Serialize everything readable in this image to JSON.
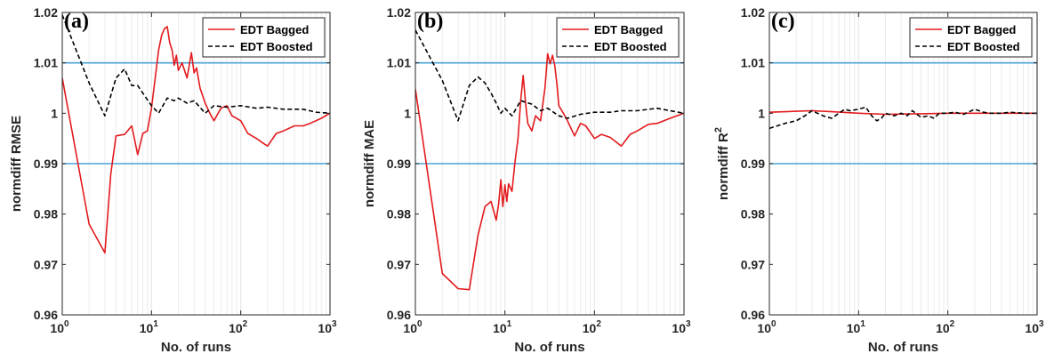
{
  "chart_data": [
    {
      "type": "line",
      "panel_label": "(a)",
      "xlabel": "No. of runs",
      "ylabel": "normdiff RMSE",
      "ylabel_sup": "",
      "xscale": "log",
      "xlim": [
        1,
        1000
      ],
      "ylim": [
        0.96,
        1.02
      ],
      "x_ticks": [
        1,
        10,
        100,
        1000
      ],
      "x_tick_labels": [
        {
          "base": "10",
          "exp": "0"
        },
        {
          "base": "10",
          "exp": "1"
        },
        {
          "base": "10",
          "exp": "2"
        },
        {
          "base": "10",
          "exp": "3"
        }
      ],
      "y_ticks": [
        0.96,
        0.97,
        0.98,
        0.99,
        1,
        1.01,
        1.02
      ],
      "y_tick_labels": [
        "0.96",
        "0.97",
        "0.98",
        "0.99",
        "1",
        "1.01",
        "1.02"
      ],
      "reference_lines": [
        0.99,
        1.01
      ],
      "grid": "x-minor",
      "legend_position": "top-right",
      "series": [
        {
          "name": "EDT Bagged",
          "color": "#e31a1c",
          "dash": "solid",
          "x": [
            1,
            2,
            3,
            3.5,
            4,
            5,
            6,
            7,
            8,
            9,
            10,
            11,
            12,
            13,
            14,
            15,
            16,
            17,
            18,
            19,
            20,
            22,
            25,
            28,
            30,
            32,
            35,
            40,
            45,
            50,
            60,
            70,
            80,
            100,
            120,
            150,
            180,
            200,
            250,
            300,
            400,
            500,
            600,
            800,
            1000
          ],
          "y": [
            1.007,
            0.978,
            0.9723,
            0.988,
            0.9955,
            0.9958,
            0.9975,
            0.9918,
            0.996,
            0.9965,
            1.001,
            1.007,
            1.0125,
            1.0155,
            1.0168,
            1.0172,
            1.014,
            1.0125,
            1.0095,
            1.0115,
            1.0085,
            1.01,
            1.007,
            1.012,
            1.008,
            1.009,
            1.005,
            1.002,
            1.0,
            0.9985,
            1.001,
            1.0015,
            0.9995,
            0.9985,
            0.996,
            0.995,
            0.994,
            0.9935,
            0.996,
            0.9965,
            0.9975,
            0.9975,
            0.998,
            0.999,
            1.0
          ]
        },
        {
          "name": "EDT Boosted",
          "color": "#000000",
          "dash": "dashed",
          "x": [
            1,
            2,
            3,
            4,
            5,
            6,
            7,
            8,
            10,
            12,
            15,
            18,
            20,
            25,
            30,
            40,
            50,
            70,
            100,
            150,
            200,
            300,
            500,
            700,
            1000
          ],
          "y": [
            1.0195,
            1.006,
            0.9995,
            1.007,
            1.0088,
            1.0055,
            1.0055,
            1.004,
            1.0015,
            1.0,
            1.003,
            1.0025,
            1.003,
            1.002,
            1.0025,
            1.0,
            1.0015,
            1.0012,
            1.0015,
            1.001,
            1.0012,
            1.0008,
            1.0008,
            1.0002,
            1.0
          ]
        }
      ]
    },
    {
      "type": "line",
      "panel_label": "(b)",
      "xlabel": "No. of runs",
      "ylabel": "normdiff MAE",
      "ylabel_sup": "",
      "xscale": "log",
      "xlim": [
        1,
        1000
      ],
      "ylim": [
        0.96,
        1.02
      ],
      "x_ticks": [
        1,
        10,
        100,
        1000
      ],
      "x_tick_labels": [
        {
          "base": "10",
          "exp": "0"
        },
        {
          "base": "10",
          "exp": "1"
        },
        {
          "base": "10",
          "exp": "2"
        },
        {
          "base": "10",
          "exp": "3"
        }
      ],
      "y_ticks": [
        0.96,
        0.97,
        0.98,
        0.99,
        1,
        1.01,
        1.02
      ],
      "y_tick_labels": [
        "0.96",
        "0.97",
        "0.98",
        "0.99",
        "1",
        "1.01",
        "1.02"
      ],
      "reference_lines": [
        0.99,
        1.01
      ],
      "grid": "x-minor",
      "legend_position": "top-right",
      "series": [
        {
          "name": "EDT Bagged",
          "color": "#e31a1c",
          "dash": "solid",
          "x": [
            1,
            2,
            3,
            4,
            5,
            6,
            7,
            8,
            8.5,
            9,
            9.5,
            10,
            10.5,
            11,
            12,
            13,
            14,
            15,
            16,
            17,
            18,
            20,
            22,
            25,
            28,
            30,
            32,
            34,
            36,
            38,
            40,
            45,
            50,
            60,
            70,
            80,
            100,
            120,
            150,
            200,
            250,
            300,
            400,
            500,
            700,
            1000
          ],
          "y": [
            1.0048,
            0.9682,
            0.9652,
            0.965,
            0.9758,
            0.9815,
            0.9825,
            0.9788,
            0.982,
            0.9868,
            0.9815,
            0.9858,
            0.9825,
            0.986,
            0.9845,
            0.9905,
            0.995,
            1.0025,
            1.0075,
            1.002,
            0.998,
            0.9965,
            0.9995,
            0.9985,
            1.005,
            1.0118,
            1.0098,
            1.0115,
            1.0095,
            1.006,
            1.0015,
            1.0,
            0.9985,
            0.9955,
            0.998,
            0.9975,
            0.995,
            0.9958,
            0.9952,
            0.9935,
            0.9958,
            0.9965,
            0.9978,
            0.998,
            0.999,
            1.0
          ]
        },
        {
          "name": "EDT Boosted",
          "color": "#000000",
          "dash": "dashed",
          "x": [
            1,
            2,
            3,
            4,
            5,
            6,
            7,
            8,
            9,
            10,
            12,
            15,
            20,
            25,
            30,
            40,
            50,
            70,
            100,
            150,
            200,
            300,
            500,
            700,
            1000
          ],
          "y": [
            1.0165,
            1.0065,
            0.9985,
            1.0055,
            1.0072,
            1.006,
            1.004,
            1.002,
            1.0,
            1.001,
            0.9995,
            1.0025,
            1.0018,
            1.0005,
            1.001,
            0.9995,
            0.999,
            0.9998,
            1.0002,
            1.0002,
            1.0005,
            1.0005,
            1.001,
            1.0005,
            1.0
          ]
        }
      ]
    },
    {
      "type": "line",
      "panel_label": "(c)",
      "xlabel": "No. of runs",
      "ylabel": "normdiff R",
      "ylabel_sup": "2",
      "xscale": "log",
      "xlim": [
        1,
        1000
      ],
      "ylim": [
        0.96,
        1.02
      ],
      "x_ticks": [
        1,
        10,
        100,
        1000
      ],
      "x_tick_labels": [
        {
          "base": "10",
          "exp": "0"
        },
        {
          "base": "10",
          "exp": "1"
        },
        {
          "base": "10",
          "exp": "2"
        },
        {
          "base": "10",
          "exp": "3"
        }
      ],
      "y_ticks": [
        0.96,
        0.97,
        0.98,
        0.99,
        1,
        1.01,
        1.02
      ],
      "y_tick_labels": [
        "0.96",
        "0.97",
        "0.98",
        "0.99",
        "1",
        "1.01",
        "1.02"
      ],
      "reference_lines": [
        0.99,
        1.01
      ],
      "grid": "x-minor",
      "legend_position": "top-right",
      "series": [
        {
          "name": "EDT Bagged",
          "color": "#e31a1c",
          "dash": "solid",
          "x": [
            1,
            2,
            3,
            5,
            10,
            20,
            50,
            100,
            300,
            1000
          ],
          "y": [
            1.0002,
            1.0004,
            1.0005,
            1.0003,
            1.0,
            0.9998,
            0.9999,
            1.0,
            1.0,
            1.0
          ]
        },
        {
          "name": "EDT Boosted",
          "color": "#000000",
          "dash": "dashed",
          "x": [
            1,
            1.5,
            2,
            2.5,
            3,
            4,
            5,
            6,
            7,
            8,
            10,
            12,
            14,
            16,
            18,
            20,
            25,
            30,
            35,
            40,
            50,
            60,
            70,
            80,
            100,
            120,
            150,
            200,
            250,
            300,
            400,
            500,
            700,
            1000
          ],
          "y": [
            0.997,
            0.998,
            0.9985,
            0.9995,
            1.0005,
            0.9995,
            0.999,
            1.0,
            1.0008,
            1.0005,
            1.0008,
            1.0012,
            0.9995,
            0.9985,
            0.999,
            1.0,
            0.9995,
            1.0,
            0.9995,
            1.0005,
            0.9992,
            0.9995,
            0.999,
            1.0,
            1.0,
            1.0002,
            0.9998,
            1.0008,
            1.0002,
            1.0,
            1.0,
            1.0002,
            1.0,
            1.0
          ]
        }
      ]
    }
  ]
}
